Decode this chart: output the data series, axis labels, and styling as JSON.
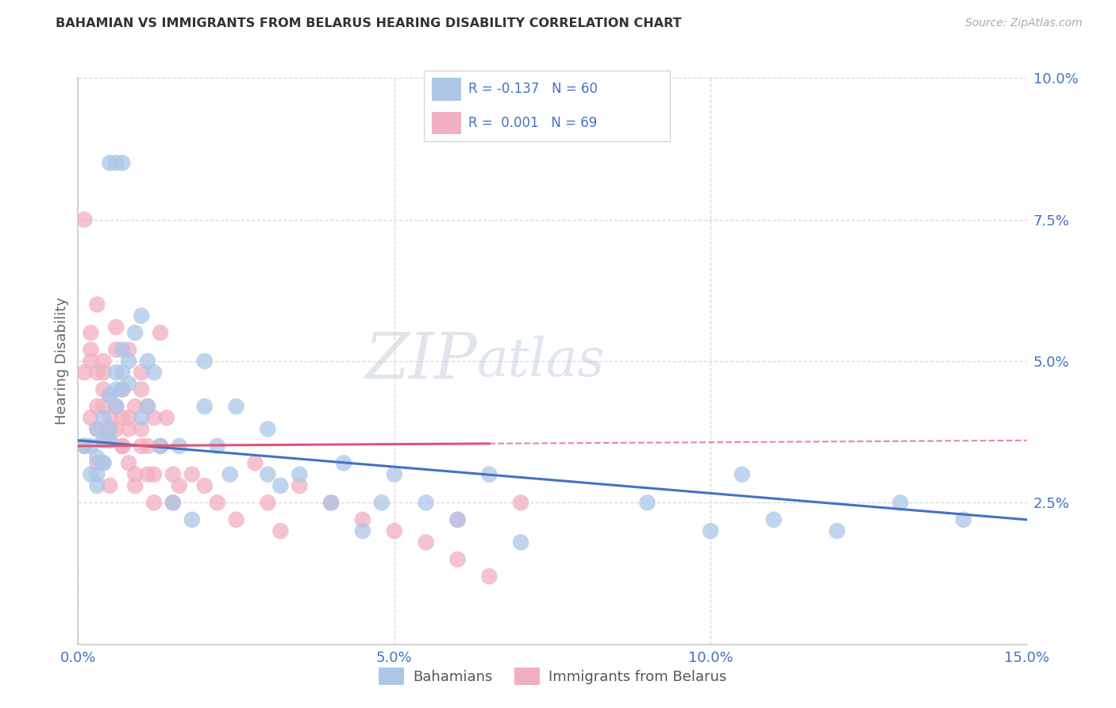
{
  "title": "BAHAMIAN VS IMMIGRANTS FROM BELARUS HEARING DISABILITY CORRELATION CHART",
  "source": "Source: ZipAtlas.com",
  "ylabel": "Hearing Disability",
  "xlim": [
    0.0,
    0.15
  ],
  "ylim": [
    0.0,
    0.1
  ],
  "xticks": [
    0.0,
    0.05,
    0.1,
    0.15
  ],
  "yticks_right": [
    0.025,
    0.05,
    0.075,
    0.1
  ],
  "ytick_labels_right": [
    "2.5%",
    "5.0%",
    "7.5%",
    "10.0%"
  ],
  "xtick_labels": [
    "0.0%",
    "5.0%",
    "10.0%",
    "15.0%"
  ],
  "legend_label1": "Bahamians",
  "legend_label2": "Immigrants from Belarus",
  "R1": -0.137,
  "N1": 60,
  "R2": 0.001,
  "N2": 69,
  "color_blue": "#adc6e8",
  "color_pink": "#f2afc0",
  "line_blue": "#4472c4",
  "line_pink": "#e05575",
  "background_color": "#ffffff",
  "grid_color": "#d0d0d0",
  "blue_x": [
    0.005,
    0.006,
    0.007,
    0.001,
    0.002,
    0.002,
    0.003,
    0.003,
    0.003,
    0.004,
    0.004,
    0.004,
    0.005,
    0.005,
    0.006,
    0.006,
    0.007,
    0.007,
    0.008,
    0.008,
    0.009,
    0.01,
    0.01,
    0.011,
    0.011,
    0.012,
    0.013,
    0.015,
    0.016,
    0.018,
    0.02,
    0.02,
    0.022,
    0.024,
    0.025,
    0.03,
    0.03,
    0.032,
    0.035,
    0.04,
    0.042,
    0.045,
    0.048,
    0.05,
    0.055,
    0.06,
    0.065,
    0.07,
    0.09,
    0.1,
    0.105,
    0.11,
    0.12,
    0.13,
    0.14,
    0.003,
    0.004,
    0.005,
    0.006,
    0.007
  ],
  "blue_y": [
    0.085,
    0.085,
    0.085,
    0.035,
    0.035,
    0.03,
    0.038,
    0.033,
    0.03,
    0.04,
    0.036,
    0.032,
    0.044,
    0.038,
    0.048,
    0.042,
    0.052,
    0.045,
    0.05,
    0.046,
    0.055,
    0.058,
    0.04,
    0.05,
    0.042,
    0.048,
    0.035,
    0.025,
    0.035,
    0.022,
    0.05,
    0.042,
    0.035,
    0.03,
    0.042,
    0.038,
    0.03,
    0.028,
    0.03,
    0.025,
    0.032,
    0.02,
    0.025,
    0.03,
    0.025,
    0.022,
    0.03,
    0.018,
    0.025,
    0.02,
    0.03,
    0.022,
    0.02,
    0.025,
    0.022,
    0.028,
    0.032,
    0.036,
    0.045,
    0.048
  ],
  "pink_x": [
    0.001,
    0.001,
    0.002,
    0.002,
    0.002,
    0.003,
    0.003,
    0.003,
    0.003,
    0.004,
    0.004,
    0.004,
    0.004,
    0.005,
    0.005,
    0.005,
    0.006,
    0.006,
    0.006,
    0.007,
    0.007,
    0.007,
    0.008,
    0.008,
    0.008,
    0.009,
    0.009,
    0.01,
    0.01,
    0.01,
    0.011,
    0.011,
    0.012,
    0.012,
    0.013,
    0.014,
    0.015,
    0.015,
    0.016,
    0.018,
    0.02,
    0.022,
    0.025,
    0.028,
    0.03,
    0.032,
    0.035,
    0.04,
    0.045,
    0.05,
    0.055,
    0.06,
    0.06,
    0.065,
    0.07,
    0.001,
    0.002,
    0.003,
    0.004,
    0.005,
    0.005,
    0.006,
    0.007,
    0.008,
    0.009,
    0.01,
    0.011,
    0.012,
    0.013
  ],
  "pink_y": [
    0.075,
    0.048,
    0.052,
    0.055,
    0.05,
    0.048,
    0.042,
    0.038,
    0.06,
    0.042,
    0.048,
    0.036,
    0.05,
    0.04,
    0.044,
    0.038,
    0.042,
    0.052,
    0.056,
    0.04,
    0.035,
    0.045,
    0.04,
    0.052,
    0.038,
    0.042,
    0.03,
    0.045,
    0.035,
    0.048,
    0.042,
    0.035,
    0.04,
    0.03,
    0.055,
    0.04,
    0.03,
    0.025,
    0.028,
    0.03,
    0.028,
    0.025,
    0.022,
    0.032,
    0.025,
    0.02,
    0.028,
    0.025,
    0.022,
    0.02,
    0.018,
    0.022,
    0.015,
    0.012,
    0.025,
    0.035,
    0.04,
    0.032,
    0.045,
    0.036,
    0.028,
    0.038,
    0.035,
    0.032,
    0.028,
    0.038,
    0.03,
    0.025,
    0.035
  ],
  "blue_line_x0": 0.0,
  "blue_line_y0": 0.036,
  "blue_line_x1": 0.15,
  "blue_line_y1": 0.022,
  "pink_line_x0": 0.0,
  "pink_line_y0": 0.035,
  "pink_line_x1": 0.15,
  "pink_line_y1": 0.036
}
